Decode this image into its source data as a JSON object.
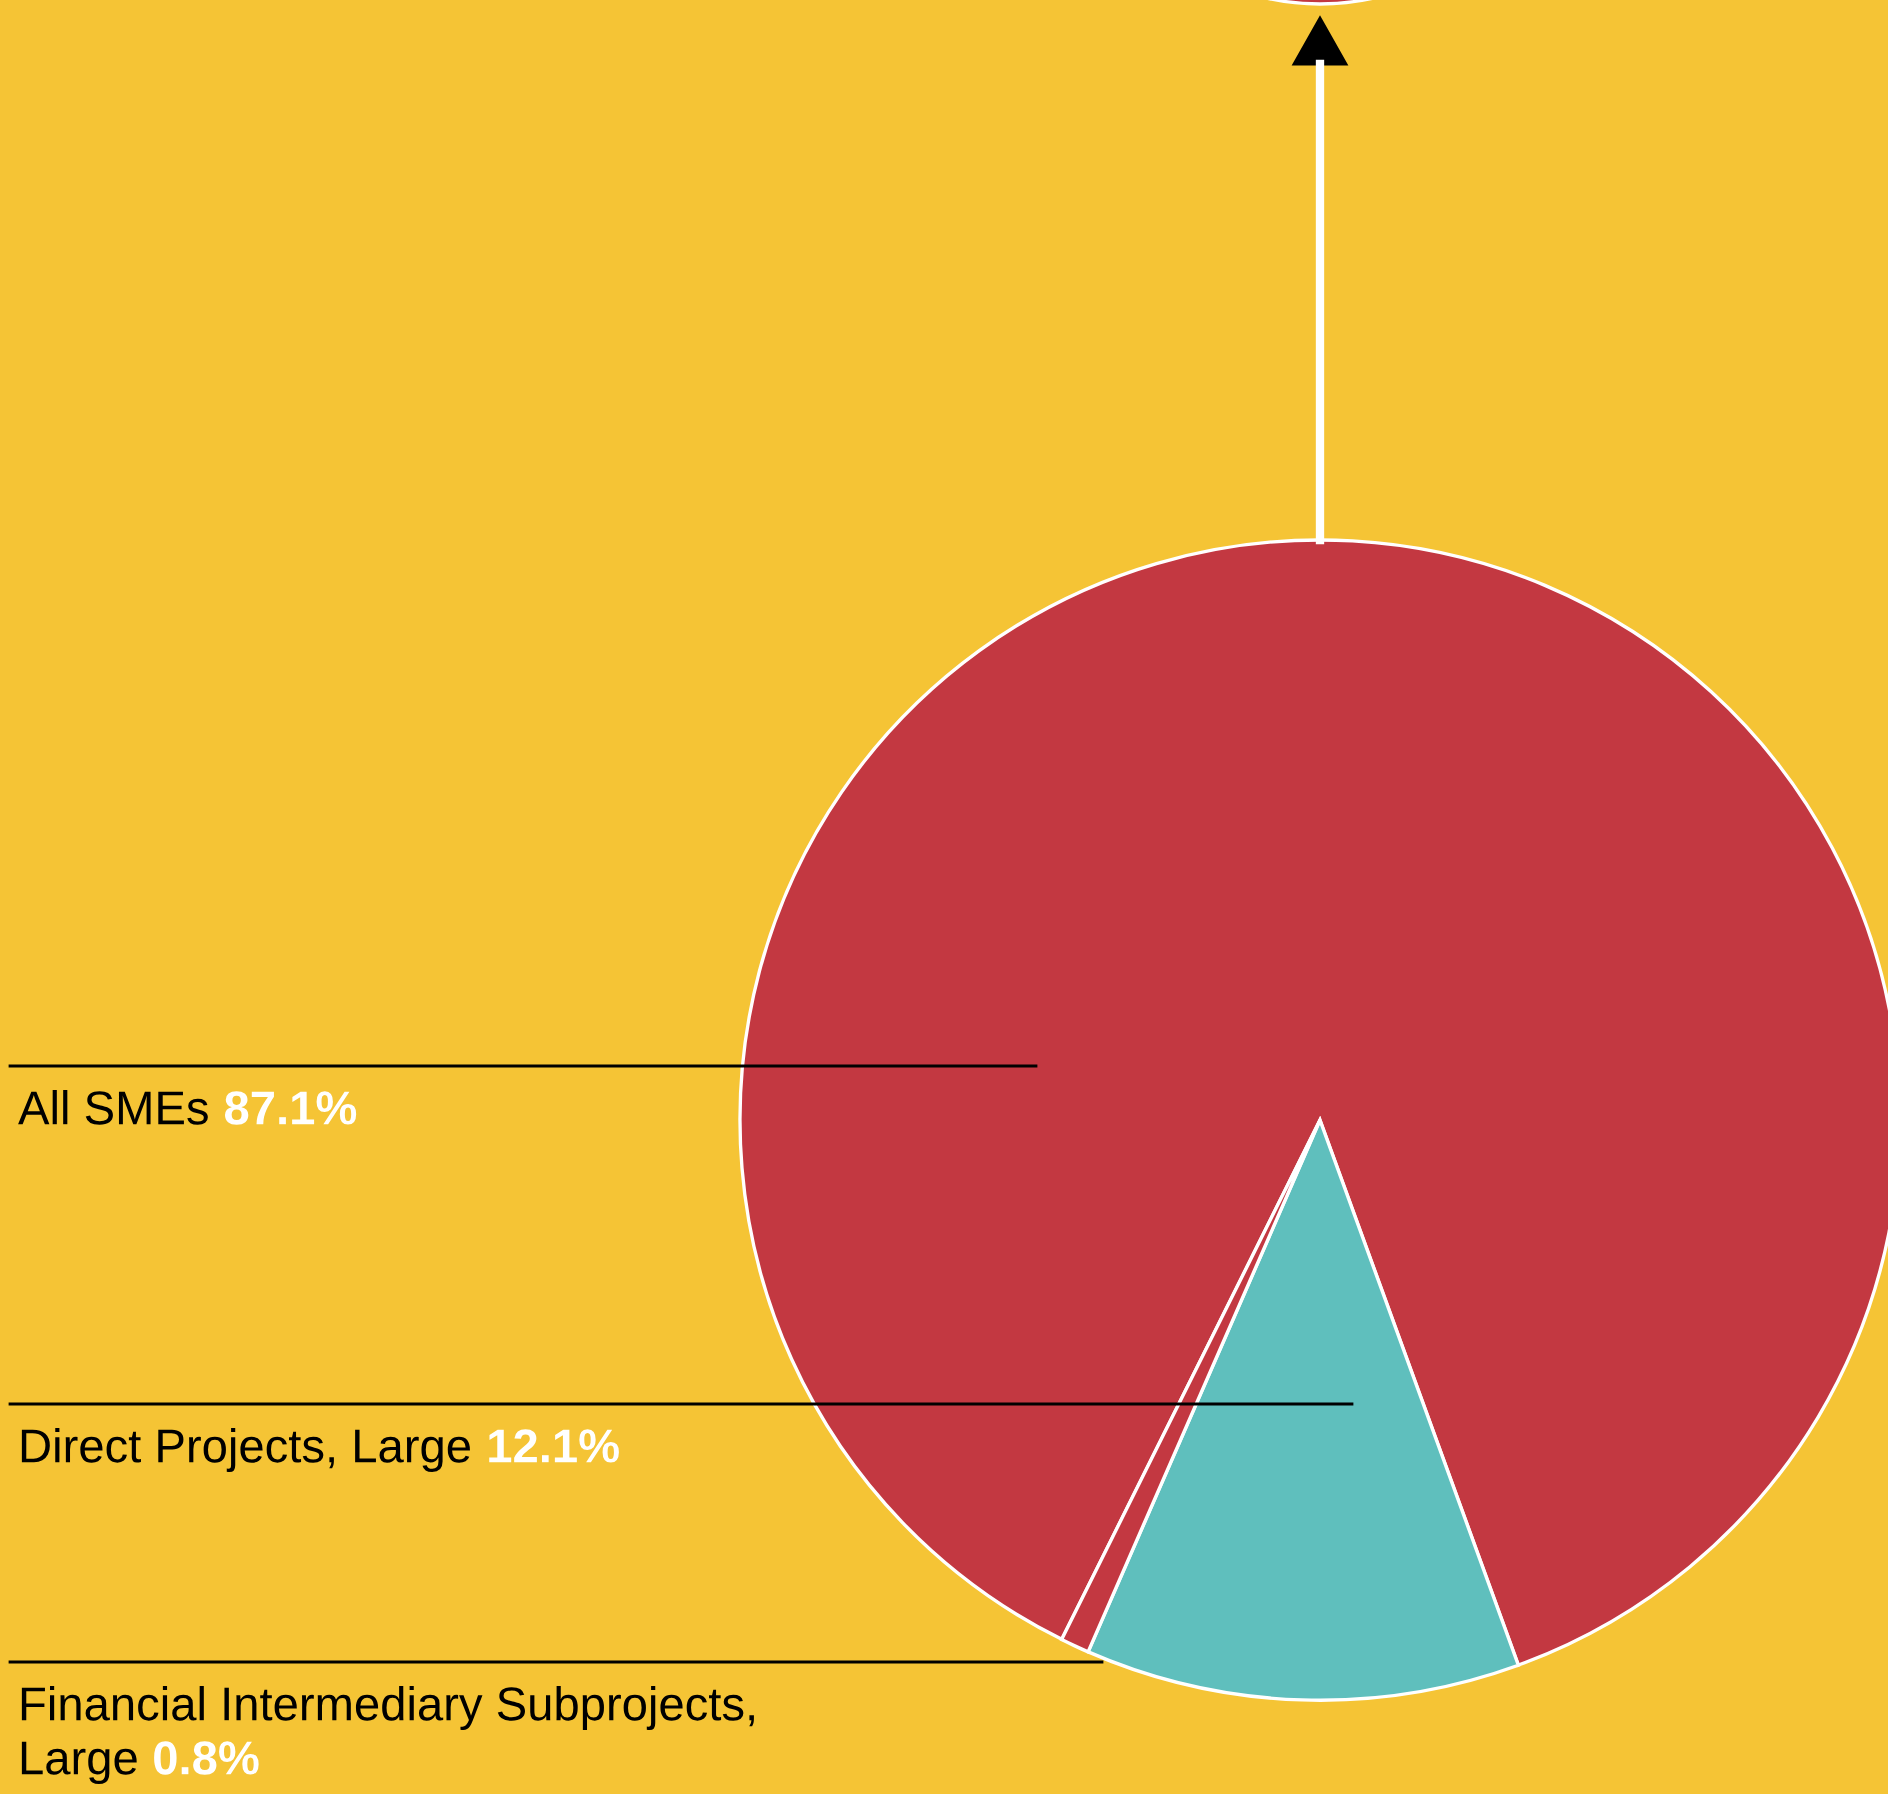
{
  "chart_data": {
    "type": "pie",
    "categories": [
      "All SMEs",
      "Direct Projects, Large",
      "Financial Intermediary Subprojects, Large"
    ],
    "values": [
      87.1,
      12.1,
      0.8
    ],
    "colors": [
      "#c33841",
      "#5fbfbd",
      "#c33841"
    ],
    "value_labels": [
      "87.1%",
      "12.1%",
      "0.8%"
    ]
  }
}
